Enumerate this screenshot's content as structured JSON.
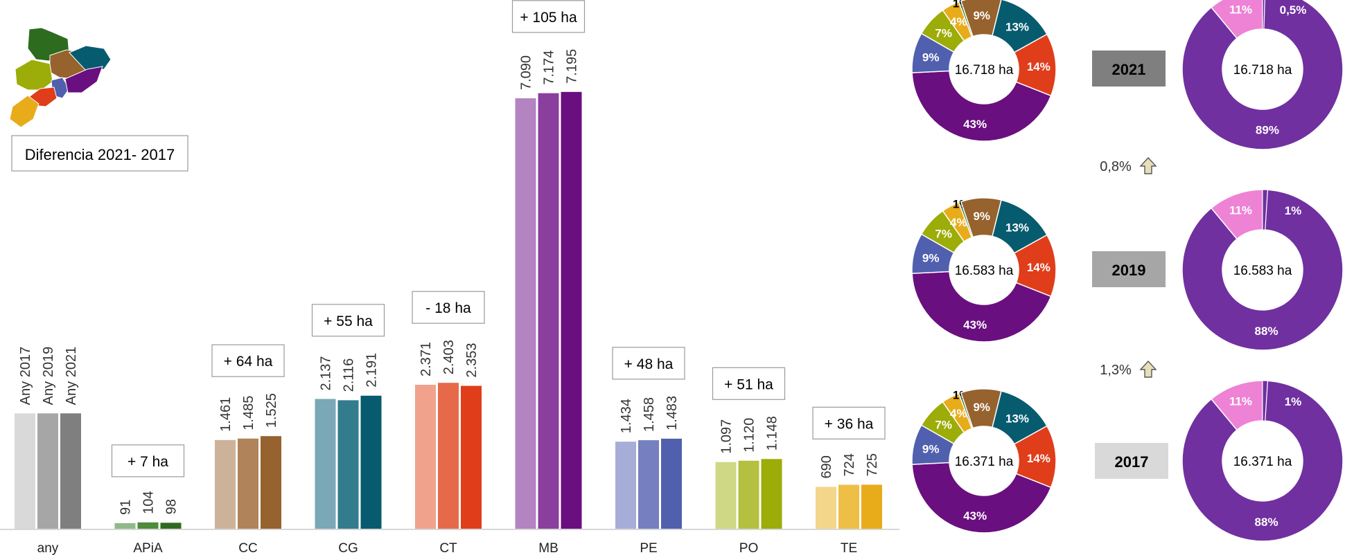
{
  "legend_box": {
    "label": "Diferencia 2021- 2017"
  },
  "chart_data": [
    {
      "type": "bar",
      "categories": [
        "any",
        "APiA",
        "CC",
        "CG",
        "CT",
        "MB",
        "PE",
        "PO",
        "TE"
      ],
      "series": [
        {
          "name": "Any 2017",
          "values": [
            null,
            91,
            1461,
            2137,
            2371,
            7090,
            1434,
            1097,
            690
          ]
        },
        {
          "name": "Any 2019",
          "values": [
            null,
            104,
            1485,
            2116,
            2403,
            7174,
            1458,
            1120,
            724
          ]
        },
        {
          "name": "Any 2021",
          "values": [
            null,
            98,
            1525,
            2191,
            2353,
            7195,
            1483,
            1148,
            725
          ]
        }
      ],
      "value_labels": [
        [],
        [
          "91",
          "104",
          "98"
        ],
        [
          "1.461",
          "1.485",
          "1.525"
        ],
        [
          "2.137",
          "2.116",
          "2.191"
        ],
        [
          "2.371",
          "2.403",
          "2.353"
        ],
        [
          "7.090",
          "7.174",
          "7.195"
        ],
        [
          "1.434",
          "1.458",
          "1.483"
        ],
        [
          "1.097",
          "1.120",
          "1.148"
        ],
        [
          "690",
          "724",
          "725"
        ]
      ],
      "differences": [
        "",
        "+ 7 ha",
        "+ 64 ha",
        "+ 55 ha",
        "- 18 ha",
        "+ 105 ha",
        "+ 48 ha",
        "+ 51 ha",
        "+ 36 ha"
      ],
      "legend_bar_value": 1900,
      "colors": [
        [
          "#d9d9d9",
          "#a6a6a6",
          "#7f7f7f"
        ],
        [
          "#8fb98b",
          "#4c8c3c",
          "#2d6b1f"
        ],
        [
          "#cdb29a",
          "#b1835a",
          "#96622e"
        ],
        [
          "#7aa8b6",
          "#327c8e",
          "#075b6f"
        ],
        [
          "#f0a28d",
          "#e66a4a",
          "#e03d1a"
        ],
        [
          "#b383c2",
          "#8a3f9e",
          "#6a0f7f"
        ],
        [
          "#a6aed8",
          "#7680c0",
          "#5060ae"
        ],
        [
          "#cfd884",
          "#b4c03f",
          "#9cac08"
        ],
        [
          "#f4d68a",
          "#eebf47",
          "#e8ac1a"
        ]
      ],
      "ylim": [
        0,
        7500
      ]
    },
    {
      "type": "pie",
      "variant": "donut",
      "group": "comarca",
      "charts": [
        {
          "year": "2021",
          "center": "16.718 ha",
          "values": [
            43,
            9,
            7,
            4,
            0.5,
            9,
            13,
            14
          ],
          "labels": [
            "43%",
            "9%",
            "7%",
            "4%",
            "1%",
            "9%",
            "13%",
            "14%"
          ]
        },
        {
          "year": "2019",
          "center": "16.583 ha",
          "values": [
            43,
            9,
            7,
            4,
            0.5,
            9,
            13,
            14
          ],
          "labels": [
            "43%",
            "9%",
            "7%",
            "4%",
            "1%",
            "9%",
            "13%",
            "14%"
          ]
        },
        {
          "year": "2017",
          "center": "16.371 ha",
          "values": [
            43,
            9,
            7,
            4,
            0.5,
            9,
            13,
            14
          ],
          "labels": [
            "43%",
            "9%",
            "7%",
            "4%",
            "1%",
            "9%",
            "13%",
            "14%"
          ]
        }
      ],
      "colors": [
        "#6a0f7f",
        "#5060ae",
        "#9cac08",
        "#e8ac1a",
        "#2d6b1f",
        "#96622e",
        "#075b6f",
        "#e03d1a"
      ]
    },
    {
      "type": "pie",
      "variant": "donut",
      "group": "tipus",
      "charts": [
        {
          "center": "16.718 ha",
          "values": [
            88.5,
            11,
            0.5
          ],
          "labels": [
            "89%",
            "11%",
            "0,5%"
          ]
        },
        {
          "center": "16.583 ha",
          "values": [
            88,
            11,
            1
          ],
          "labels": [
            "88%",
            "11%",
            "1%"
          ]
        },
        {
          "center": "16.371 ha",
          "values": [
            88,
            11,
            1
          ],
          "labels": [
            "88%",
            "11%",
            "1%"
          ]
        }
      ],
      "colors": [
        "#7030a0",
        "#ee82d5",
        "#7030a0"
      ]
    }
  ],
  "year_labels": [
    {
      "text": "2021",
      "bg": "#7f7f7f"
    },
    {
      "text": "2019",
      "bg": "#a6a6a6"
    },
    {
      "text": "2017",
      "bg": "#d9d9d9"
    }
  ],
  "changes": [
    "0,8%",
    "1,3%"
  ],
  "map_colors": [
    "#2d6b1f",
    "#96622e",
    "#075b6f",
    "#9cac08",
    "#5060ae",
    "#6a0f7f",
    "#e03d1a",
    "#e8ac1a"
  ]
}
